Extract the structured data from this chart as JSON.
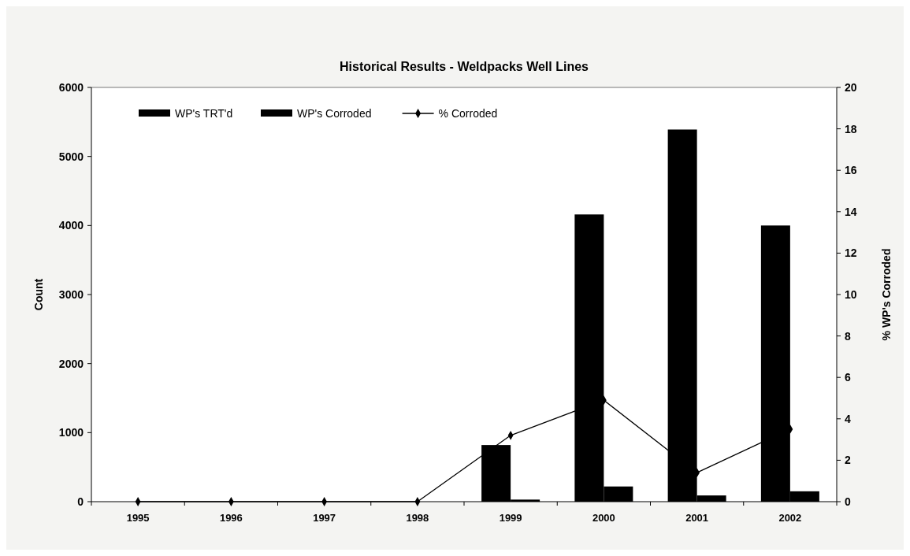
{
  "chart_data": {
    "type": "bar",
    "title": "Historical Results - Weldpacks Well Lines",
    "ylabel": "Count",
    "y2label": "% WP's Corroded",
    "categories": [
      "1995",
      "1996",
      "1997",
      "1998",
      "1999",
      "2000",
      "2001",
      "2002"
    ],
    "series": [
      {
        "name": "WP's TRT'd",
        "color": "#000000",
        "values": [
          0,
          0,
          0,
          0,
          820,
          4160,
          5390,
          4000
        ]
      },
      {
        "name": "WP's Corroded",
        "color": "#000000",
        "values": [
          0,
          0,
          0,
          0,
          30,
          220,
          90,
          150
        ]
      },
      {
        "name": "% Corroded",
        "type": "line",
        "axis": "y2",
        "color": "#000000",
        "marker": "diamond",
        "values": [
          0,
          0,
          0,
          0,
          3.2,
          4.9,
          1.4,
          3.5
        ]
      }
    ],
    "ylim": [
      0,
      6000
    ],
    "yticks": [
      0,
      1000,
      2000,
      3000,
      4000,
      5000,
      6000
    ],
    "y2lim": [
      0,
      20
    ],
    "y2ticks": [
      0,
      2,
      4,
      6,
      8,
      10,
      12,
      14,
      16,
      18,
      20
    ],
    "grid": false,
    "legend": "top left"
  }
}
